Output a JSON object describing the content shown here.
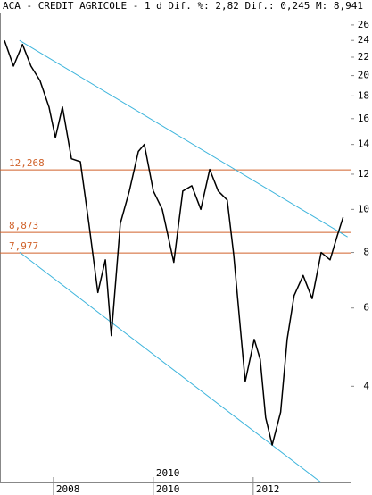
{
  "chart_data": {
    "type": "line",
    "log_scale": true,
    "title": "ACA - CREDIT AGRICOLE -  1 d Dif. %: 2,82 Dif.: 0,245 M: 8,941",
    "cursor_label": "2010",
    "x": [
      2007.02,
      2007.2,
      2007.38,
      2007.55,
      2007.73,
      2007.91,
      2008.04,
      2008.18,
      2008.36,
      2008.54,
      2008.71,
      2008.89,
      2009.04,
      2009.16,
      2009.34,
      2009.52,
      2009.7,
      2009.82,
      2010.0,
      2010.18,
      2010.41,
      2010.59,
      2010.77,
      2010.95,
      2011.13,
      2011.3,
      2011.48,
      2011.61,
      2011.75,
      2011.84,
      2012.02,
      2012.14,
      2012.25,
      2012.38,
      2012.55,
      2012.68,
      2012.82,
      2013.0,
      2013.18,
      2013.36,
      2013.54,
      2013.68,
      2013.8
    ],
    "series": [
      {
        "name": "ACA",
        "color": "#000000",
        "values": [
          24,
          21,
          23.5,
          21,
          19.5,
          17,
          14.5,
          17,
          13,
          12.8,
          9.3,
          6.5,
          7.7,
          5.2,
          9.3,
          11,
          13.5,
          14,
          11,
          10,
          7.6,
          11,
          11.3,
          10,
          12.3,
          11,
          10.5,
          7.9,
          5.3,
          4.1,
          5.1,
          4.6,
          3.4,
          2.95,
          3.5,
          5.1,
          6.4,
          7.1,
          6.3,
          8,
          7.7,
          8.7,
          9.6
        ]
      }
    ],
    "hlines": [
      {
        "value": 12.268,
        "label": "12,268"
      },
      {
        "value": 8.873,
        "label": "8,873"
      },
      {
        "value": 7.977,
        "label": "7,977"
      }
    ],
    "hline_color": "#d0622a",
    "trendlines": [
      {
        "x": [
          2007.32,
          2013.89
        ],
        "values": [
          24.0,
          8.67
        ]
      },
      {
        "x": [
          2007.32,
          2013.36
        ],
        "values": [
          8.01,
          2.43
        ]
      }
    ],
    "trend_color": "#3cb4dc",
    "xlim": [
      2006.93,
      2013.95
    ],
    "xticks": [
      2008,
      2010,
      2012
    ],
    "ylim": [
      2.43,
      27.6
    ],
    "yticks": [
      4,
      6,
      8,
      10,
      12,
      14,
      16,
      18,
      20,
      22,
      24,
      26
    ]
  }
}
